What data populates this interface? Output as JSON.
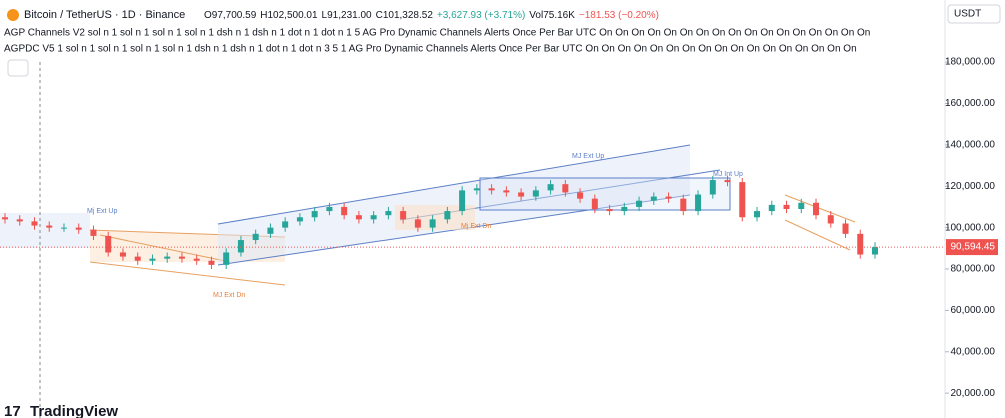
{
  "header": {
    "symbol": "Bitcoin / TetherUS · 1D · Binance",
    "ohlc": [
      "O97,700.59",
      "H102,500.01",
      "L91,231.00",
      "C101,328.52",
      "+3,627.93 (+3.71%)"
    ],
    "volume": "Vol75.16K",
    "volume_change": "−181.53 (−0.20%)",
    "indicators": [
      "AGP Channels V2 sol n 1 sol n 1 sol n 1 sol n 1 dsh n 1 dsh n 1 dot n 1 dot n 1 5 AG Pro Dynamic Channels Alerts Once Per Bar UTC On On On On On On On On On On On On On On On On On",
      "AGPDC V5 1 sol n 1 sol n 1 sol n 1 sol n 1 dsh n 1 dsh n 1 dot n 1 dot n 3 5 1 AG Pro Dynamic Channels Alerts Once Per Bar UTC On On On On On On On On On On On On On On On On On"
    ],
    "currency": "USDT",
    "logo": "TradingView"
  },
  "chart_data": {
    "type": "candlestick",
    "categories": [
      null,
      null,
      null,
      null,
      null,
      null,
      null,
      null,
      null,
      null,
      null,
      null,
      null,
      null,
      null,
      null,
      null,
      null,
      null,
      null,
      null,
      null,
      null,
      null,
      null,
      null,
      null,
      null,
      null,
      null,
      null,
      null,
      null,
      null,
      null,
      null,
      null,
      null,
      null,
      null,
      null,
      null,
      null,
      null,
      null,
      null,
      null,
      null,
      null,
      null,
      null,
      null,
      null,
      null,
      null,
      null,
      null,
      null,
      null,
      null
    ],
    "open": [
      105000,
      104000,
      103000,
      101000,
      100000,
      100000,
      99000,
      96000,
      88000,
      86000,
      84000,
      85000,
      86000,
      85000,
      84000,
      82000,
      88000,
      94000,
      97000,
      100000,
      103000,
      105000,
      108000,
      110000,
      106000,
      104000,
      106000,
      108000,
      104000,
      100000,
      104000,
      108000,
      118000,
      119000,
      118000,
      117000,
      115000,
      118000,
      121000,
      117000,
      114000,
      109000,
      108000,
      110000,
      113000,
      115000,
      114000,
      108000,
      116000,
      123000,
      122000,
      105000,
      108000,
      111000,
      109000,
      112000,
      106000,
      102000,
      97000,
      87000
    ],
    "high": [
      107000,
      106000,
      105000,
      103000,
      102000,
      102000,
      101000,
      98000,
      90000,
      88000,
      87000,
      88000,
      88000,
      87000,
      86000,
      90000,
      96000,
      99000,
      102000,
      105000,
      107000,
      110000,
      112000,
      112000,
      108000,
      108000,
      110000,
      110000,
      106000,
      106000,
      110000,
      120000,
      121000,
      121000,
      120000,
      119000,
      120000,
      123000,
      123000,
      119000,
      116000,
      111000,
      112000,
      115000,
      117000,
      117000,
      116000,
      118000,
      125000,
      125000,
      124000,
      110000,
      113000,
      113000,
      114000,
      114000,
      108000,
      104000,
      99000,
      93000
    ],
    "low": [
      102000,
      101000,
      99000,
      98000,
      98000,
      97000,
      94000,
      86000,
      84000,
      82000,
      82000,
      83000,
      83000,
      82000,
      80000,
      80000,
      86000,
      92000,
      95000,
      98000,
      101000,
      103000,
      106000,
      104000,
      102000,
      102000,
      104000,
      102000,
      98000,
      98000,
      102000,
      106000,
      116000,
      116000,
      115000,
      113000,
      113000,
      116000,
      115000,
      112000,
      107000,
      106000,
      106000,
      108000,
      111000,
      112000,
      106000,
      106000,
      114000,
      120000,
      103000,
      103000,
      106000,
      107000,
      107000,
      104000,
      100000,
      95000,
      85000,
      85000
    ],
    "close": [
      104000,
      103000,
      101000,
      100000,
      100000,
      99000,
      96000,
      88000,
      86000,
      84000,
      85000,
      86000,
      85000,
      84000,
      82000,
      88000,
      94000,
      97000,
      100000,
      103000,
      105000,
      108000,
      110000,
      106000,
      104000,
      106000,
      108000,
      104000,
      100000,
      104000,
      108000,
      118000,
      119000,
      118000,
      117000,
      115000,
      118000,
      121000,
      117000,
      114000,
      109000,
      108000,
      110000,
      113000,
      115000,
      114000,
      108000,
      116000,
      123000,
      122000,
      105000,
      108000,
      111000,
      109000,
      112000,
      106000,
      102000,
      97000,
      87000,
      90594.45
    ],
    "up_color": "#26a69a",
    "down_color": "#ef5350",
    "current_price": {
      "value": 90594.45,
      "label": "90,594.45"
    },
    "ylim": [
      8000,
      210000
    ],
    "yticks": [
      {
        "value": 20000,
        "label": "20,000.00"
      },
      {
        "value": 40000,
        "label": "40,000.00"
      },
      {
        "value": 60000,
        "label": "60,000.00"
      },
      {
        "value": 80000,
        "label": "80,000.00"
      },
      {
        "value": 100000,
        "label": "100,000.00"
      },
      {
        "value": 120000,
        "label": "120,000.00"
      },
      {
        "value": 140000,
        "label": "140,000.00"
      },
      {
        "value": 160000,
        "label": "160,000.00"
      },
      {
        "value": 180000,
        "label": "180,000.00"
      }
    ],
    "annotations": [
      "Mj Ext Up",
      "MJ Ext Dn",
      "MJ Ext Up",
      "Mj Ext Dn",
      "MJ Int Up"
    ]
  }
}
